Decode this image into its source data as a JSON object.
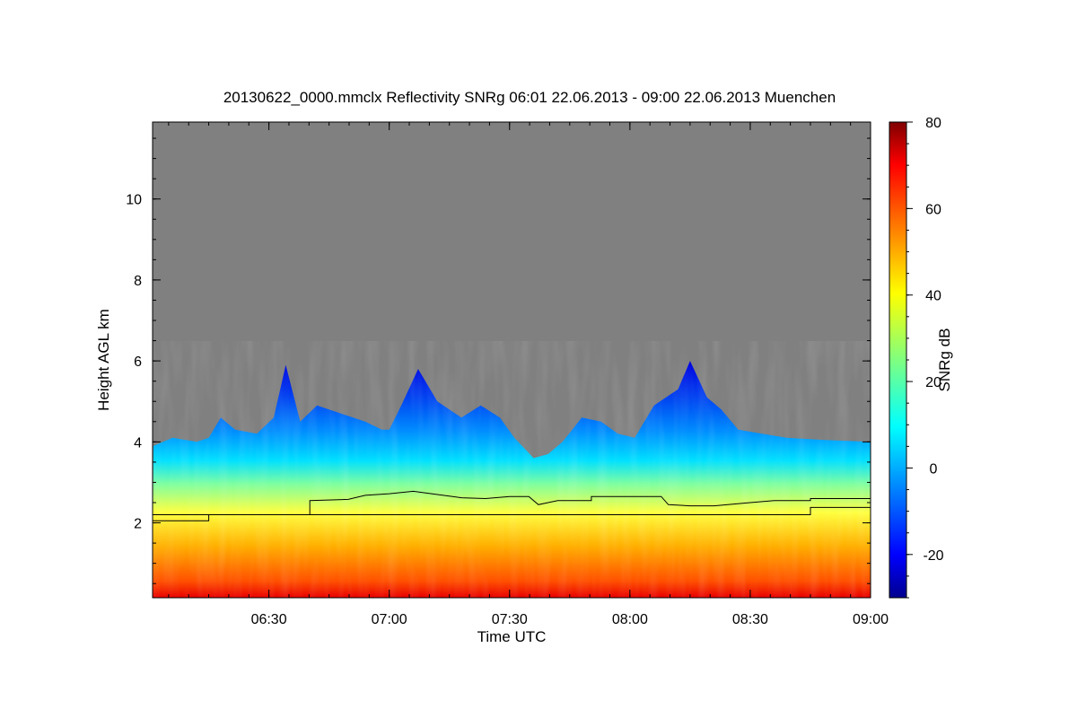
{
  "chart_data": {
    "type": "heatmap",
    "title": "20130622_0000.mmclx Reflectivity SNRg   06:01 22.06.2013 - 09:00 22.06.2013 Muenchen",
    "xlabel": "Time UTC",
    "ylabel": "Height AGL km",
    "colorbar_label": "SNRg dB",
    "x_range_hours": [
      6.0167,
      9.0
    ],
    "y_range_km": [
      0.15,
      11.9
    ],
    "x_ticks": [
      {
        "value": 6.5,
        "label": "06:30"
      },
      {
        "value": 7.0,
        "label": "07:00"
      },
      {
        "value": 7.5,
        "label": "07:30"
      },
      {
        "value": 8.0,
        "label": "08:00"
      },
      {
        "value": 8.5,
        "label": "08:30"
      },
      {
        "value": 9.0,
        "label": "09:00"
      }
    ],
    "y_ticks": [
      {
        "value": 2,
        "label": "2"
      },
      {
        "value": 4,
        "label": "4"
      },
      {
        "value": 6,
        "label": "6"
      },
      {
        "value": 8,
        "label": "8"
      },
      {
        "value": 10,
        "label": "10"
      }
    ],
    "colorbar_range": [
      -30,
      80
    ],
    "colorbar_ticks": [
      {
        "value": -20,
        "label": "-20"
      },
      {
        "value": 0,
        "label": "0"
      },
      {
        "value": 20,
        "label": "20"
      },
      {
        "value": 40,
        "label": "40"
      },
      {
        "value": 60,
        "label": "60"
      },
      {
        "value": 80,
        "label": "80"
      }
    ],
    "no_signal_color": "#808080",
    "colormap": [
      "#00008f",
      "#0000ff",
      "#00ffff",
      "#ffff00",
      "#ff0000",
      "#7f0000"
    ],
    "signal_top_km": [
      [
        6.02,
        3.9
      ],
      [
        6.1,
        4.1
      ],
      [
        6.2,
        4.0
      ],
      [
        6.25,
        4.1
      ],
      [
        6.3,
        4.6
      ],
      [
        6.36,
        4.3
      ],
      [
        6.45,
        4.2
      ],
      [
        6.52,
        4.6
      ],
      [
        6.57,
        5.9
      ],
      [
        6.63,
        4.5
      ],
      [
        6.7,
        4.9
      ],
      [
        6.8,
        4.7
      ],
      [
        6.9,
        4.5
      ],
      [
        6.97,
        4.3
      ],
      [
        7.0,
        4.3
      ],
      [
        7.05,
        4.9
      ],
      [
        7.12,
        5.8
      ],
      [
        7.2,
        5.0
      ],
      [
        7.3,
        4.6
      ],
      [
        7.38,
        4.9
      ],
      [
        7.46,
        4.6
      ],
      [
        7.52,
        4.1
      ],
      [
        7.6,
        3.6
      ],
      [
        7.66,
        3.7
      ],
      [
        7.72,
        4.0
      ],
      [
        7.8,
        4.6
      ],
      [
        7.88,
        4.5
      ],
      [
        7.95,
        4.2
      ],
      [
        8.02,
        4.1
      ],
      [
        8.1,
        4.9
      ],
      [
        8.2,
        5.3
      ],
      [
        8.25,
        6.0
      ],
      [
        8.32,
        5.1
      ],
      [
        8.38,
        4.8
      ],
      [
        8.45,
        4.3
      ],
      [
        8.55,
        4.2
      ],
      [
        8.65,
        4.1
      ],
      [
        8.8,
        4.05
      ],
      [
        9.0,
        4.0
      ]
    ],
    "series": [
      {
        "x": [
          6.0167,
          6.25,
          6.25,
          8.75,
          8.75,
          9.0
        ],
        "y": [
          2.05,
          2.05,
          2.2,
          2.2,
          2.38,
          2.38
        ]
      },
      {
        "x": [
          6.0167,
          6.67,
          6.67,
          6.83,
          6.9,
          7.0,
          7.1,
          7.2,
          7.3,
          7.4,
          7.5,
          7.58,
          7.62,
          7.66,
          7.7,
          7.75,
          7.84,
          7.84,
          8.13,
          8.16,
          8.25,
          8.35,
          8.5,
          8.6,
          8.75,
          8.75,
          9.0
        ],
        "y": [
          2.2,
          2.2,
          2.55,
          2.58,
          2.68,
          2.72,
          2.78,
          2.7,
          2.62,
          2.6,
          2.65,
          2.65,
          2.45,
          2.5,
          2.55,
          2.55,
          2.55,
          2.65,
          2.65,
          2.45,
          2.42,
          2.42,
          2.5,
          2.55,
          2.55,
          2.6,
          2.6
        ]
      }
    ]
  }
}
